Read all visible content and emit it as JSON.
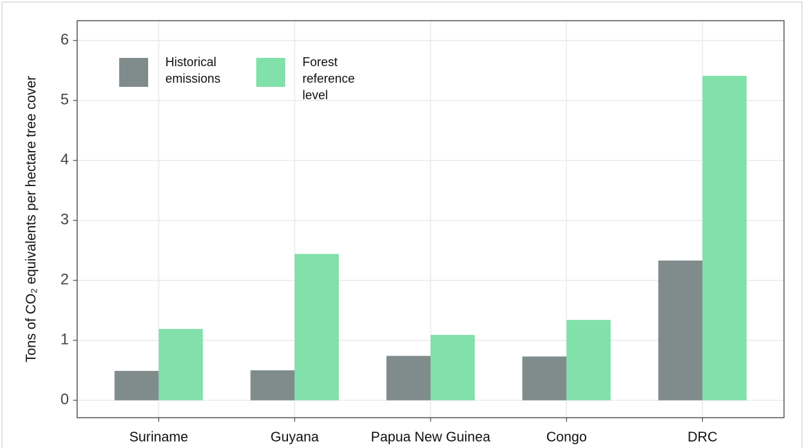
{
  "chart_data": {
    "type": "bar",
    "y_label": "Tons of  CO₂ equivalents per hectare tree cover",
    "categories": [
      "Suriname",
      "Guyana",
      "Papua New Guinea",
      "Congo",
      "DRC"
    ],
    "series": [
      {
        "name": "Historical emissions",
        "color": "#7f8c8b",
        "values": [
          0.49,
          0.5,
          0.74,
          0.73,
          2.33
        ]
      },
      {
        "name": "Forest reference level",
        "color": "#82e0aa",
        "values": [
          1.19,
          2.44,
          1.09,
          1.34,
          5.41
        ]
      }
    ],
    "ylim": [
      -0.29,
      6.33
    ],
    "yticks": [
      0,
      1,
      2,
      3,
      4,
      5,
      6
    ],
    "grid": true,
    "legend": "top-left"
  }
}
